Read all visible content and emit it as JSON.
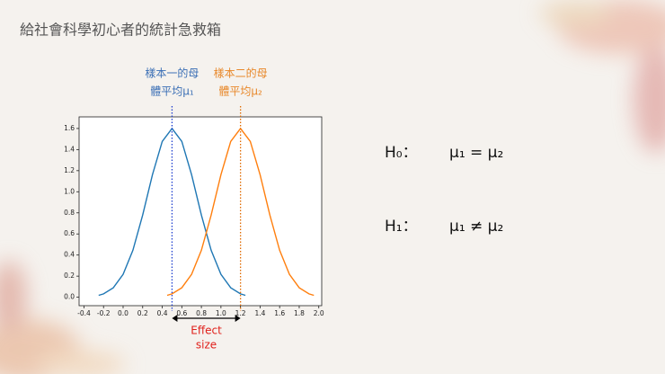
{
  "slide": {
    "title": "給社會科學初心者的統計急救箱",
    "hypotheses": [
      {
        "label": "H₀：",
        "expression": "μ₁ = μ₂"
      },
      {
        "label": "H₁：",
        "expression": "μ₁ ≠ μ₂"
      }
    ]
  },
  "chart_data": {
    "type": "line",
    "series": [
      {
        "name": "樣本一",
        "color": "#1f77b4",
        "x": [
          -0.25,
          -0.2,
          -0.1,
          0.0,
          0.1,
          0.2,
          0.3,
          0.4,
          0.5,
          0.6,
          0.7,
          0.8,
          0.9,
          1.0,
          1.1,
          1.2,
          1.25
        ],
        "values": [
          0.018,
          0.032,
          0.09,
          0.217,
          0.445,
          0.779,
          1.162,
          1.477,
          1.6,
          1.477,
          1.162,
          0.779,
          0.445,
          0.217,
          0.09,
          0.032,
          0.018
        ]
      },
      {
        "name": "樣本二",
        "color": "#ff7f0e",
        "x": [
          0.45,
          0.5,
          0.6,
          0.7,
          0.8,
          0.9,
          1.0,
          1.1,
          1.2,
          1.3,
          1.4,
          1.5,
          1.6,
          1.7,
          1.8,
          1.9,
          1.95
        ],
        "values": [
          0.018,
          0.032,
          0.09,
          0.217,
          0.445,
          0.779,
          1.162,
          1.477,
          1.6,
          1.477,
          1.162,
          0.779,
          0.445,
          0.217,
          0.09,
          0.032,
          0.018
        ]
      }
    ],
    "xlim": [
      -0.45,
      2.03
    ],
    "ylim": [
      -0.08,
      1.71
    ],
    "xticks": [
      -0.4,
      -0.2,
      {
        "value": 0.0,
        "label": "0.0"
      },
      0.2,
      0.4,
      0.6,
      0.8,
      {
        "value": 1.0,
        "label": "1.0"
      },
      1.2,
      1.4,
      1.6,
      1.8,
      {
        "value": 2.0,
        "label": "2.0"
      }
    ],
    "yticks": [
      {
        "value": 0.0,
        "label": "0.0"
      },
      0.2,
      0.4,
      0.6,
      0.8,
      {
        "value": 1.0,
        "label": "1.0"
      },
      1.2,
      1.4,
      1.6
    ],
    "mean_lines": [
      {
        "x": 0.5,
        "color": "#1f3fcf",
        "label_color": "#3b6fb5",
        "label": [
          "樣本一的母",
          "體平均μ₁"
        ]
      },
      {
        "x": 1.2,
        "color": "#e06a00",
        "label_color": "#e8882a",
        "label": [
          "樣本二的母",
          "體平均μ₂"
        ]
      }
    ],
    "effect_label": [
      "Effect",
      "size"
    ],
    "effect_color": "#e0201b"
  }
}
